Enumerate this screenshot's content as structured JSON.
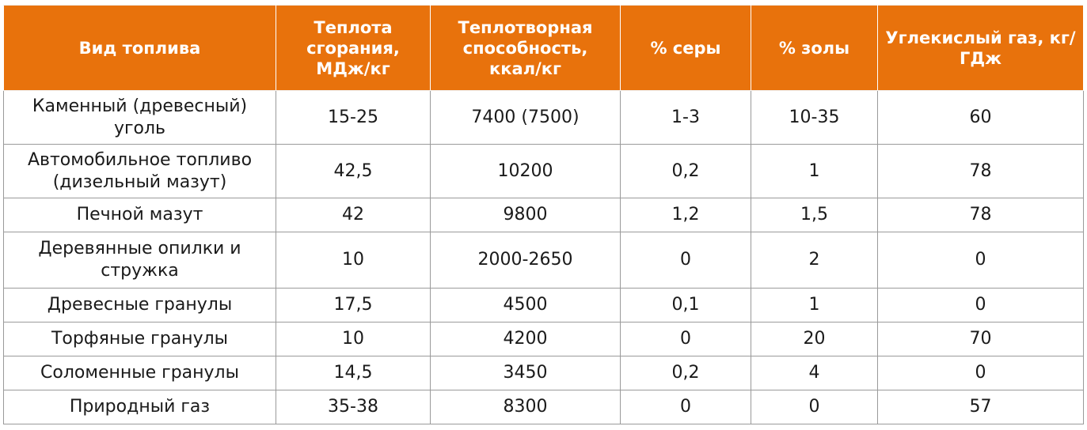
{
  "table": {
    "headers": [
      "Вид топлива",
      "Теплота сгорания, МДж/кг",
      "Теплотворная способность, ккал/кг",
      "% серы",
      "% золы",
      "Углекислый газ, кг/ГДж"
    ],
    "rows": [
      [
        "Каменный (древесный) уголь",
        "15-25",
        "7400 (7500)",
        "1-3",
        "10-35",
        "60"
      ],
      [
        "Автомобильное топливо (дизельный мазут)",
        "42,5",
        "10200",
        "0,2",
        "1",
        "78"
      ],
      [
        "Печной мазут",
        "42",
        "9800",
        "1,2",
        "1,5",
        "78"
      ],
      [
        "Деревянные опилки и стружка",
        "10",
        "2000-2650",
        "0",
        "2",
        "0"
      ],
      [
        "Древесные гранулы",
        "17,5",
        "4500",
        "0,1",
        "1",
        "0"
      ],
      [
        "Торфяные гранулы",
        "10",
        "4200",
        "0",
        "20",
        "70"
      ],
      [
        "Соломенные гранулы",
        "14,5",
        "3450",
        "0,2",
        "4",
        "0"
      ],
      [
        "Природный газ",
        "35-38",
        "8300",
        "0",
        "0",
        "57"
      ]
    ]
  },
  "colors": {
    "header_bg": "#e8720c",
    "header_text": "#ffffff",
    "border": "#9a9a9a"
  }
}
